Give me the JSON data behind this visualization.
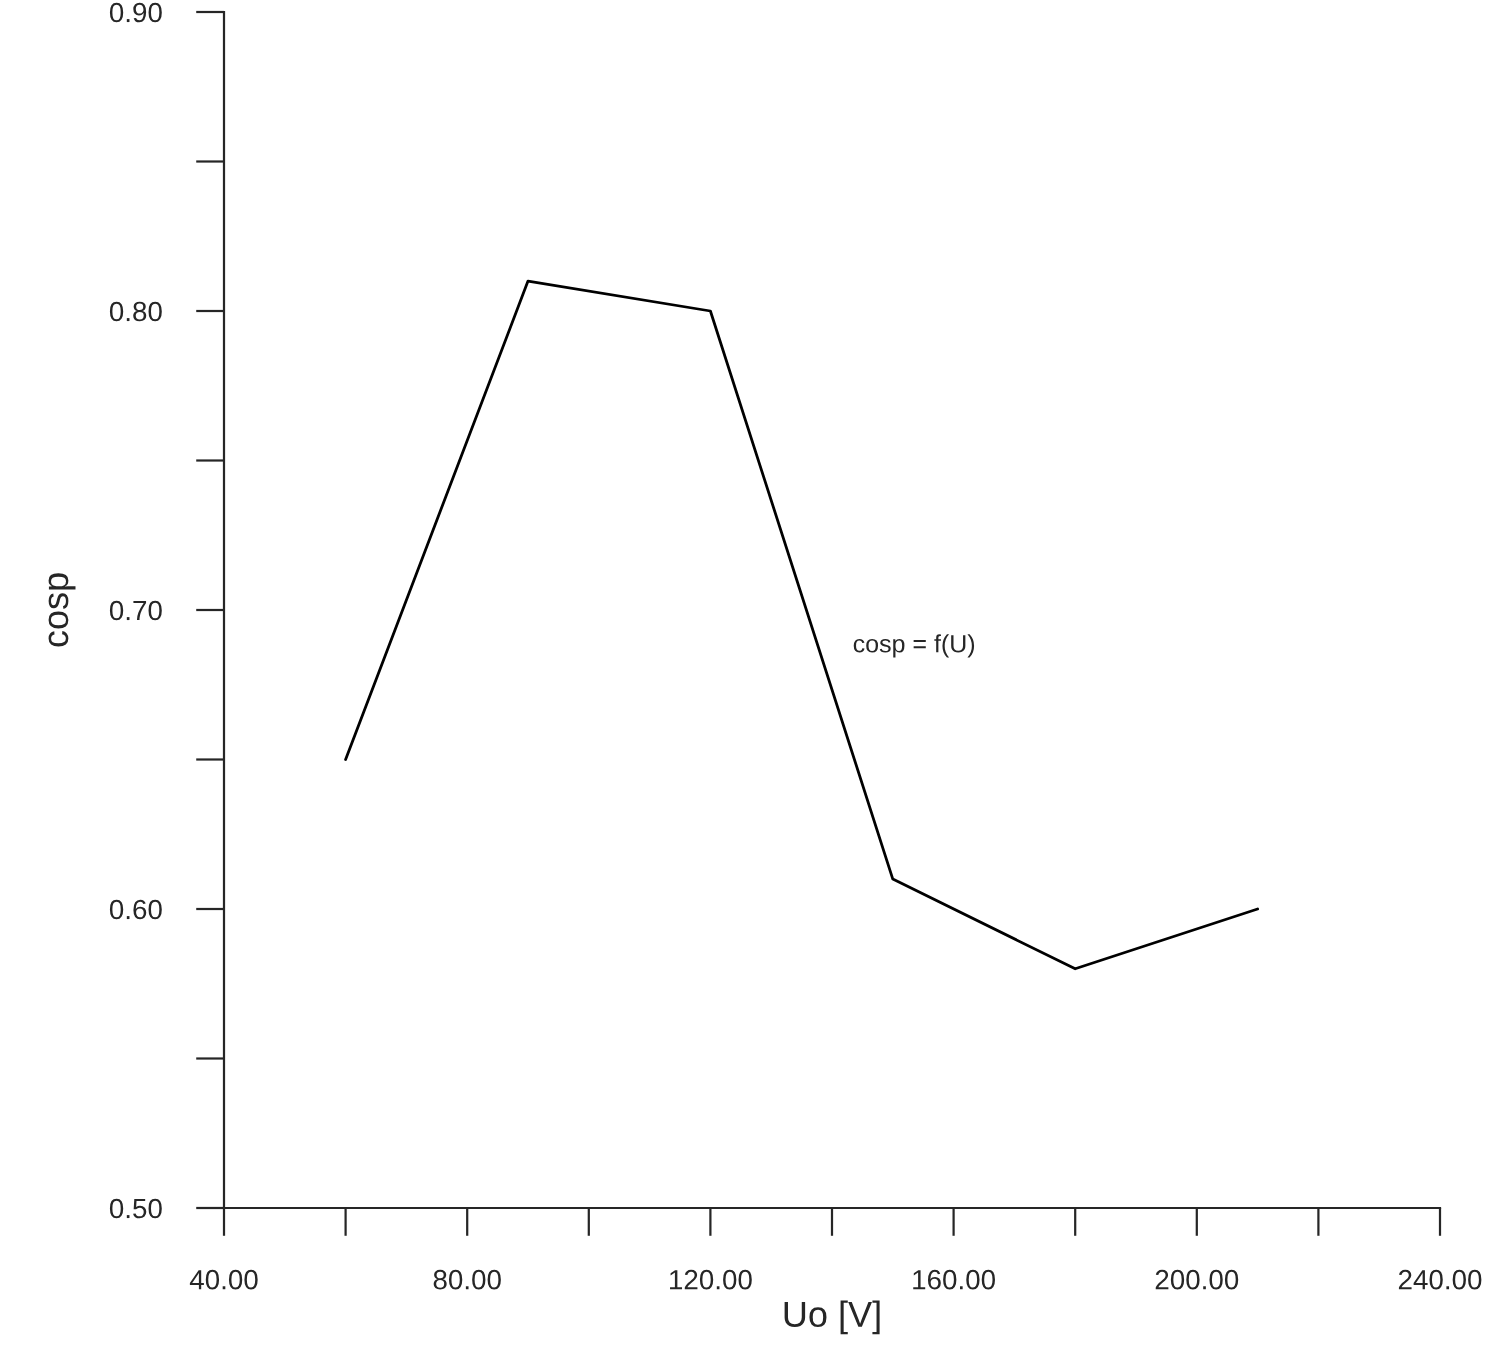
{
  "chart_data": {
    "type": "line",
    "xlabel": "Uo [V]",
    "ylabel": "cosp",
    "x": [
      60,
      90,
      120,
      150,
      180,
      210
    ],
    "series": [
      {
        "color": "#000000",
        "values": [
          0.65,
          0.81,
          0.8,
          0.61,
          0.58,
          0.6
        ]
      }
    ],
    "xlim": [
      40,
      240
    ],
    "xticks": [
      {
        "value": 40,
        "label": "40.00"
      },
      {
        "value": 60,
        "label": null
      },
      {
        "value": 80,
        "label": "80.00"
      },
      {
        "value": 100,
        "label": null
      },
      {
        "value": 120,
        "label": "120.00"
      },
      {
        "value": 140,
        "label": null
      },
      {
        "value": 160,
        "label": "160.00"
      },
      {
        "value": 180,
        "label": null
      },
      {
        "value": 200,
        "label": "200.00"
      },
      {
        "value": 220,
        "label": null
      },
      {
        "value": 240,
        "label": "240.00"
      }
    ],
    "ylim": [
      0.5,
      0.9
    ],
    "yticks": [
      {
        "value": 0.5,
        "label": "0.50"
      },
      {
        "value": 0.55,
        "label": null
      },
      {
        "value": 0.6,
        "label": "0.60"
      },
      {
        "value": 0.65,
        "label": null
      },
      {
        "value": 0.7,
        "label": "0.70"
      },
      {
        "value": 0.75,
        "label": null
      },
      {
        "value": 0.8,
        "label": "0.80"
      },
      {
        "value": 0.85,
        "label": null
      },
      {
        "value": 0.9,
        "label": "0.90"
      }
    ],
    "annotations": [
      "cosp = f(U)"
    ],
    "grid": false,
    "marker": "none",
    "line_style": "solid"
  }
}
